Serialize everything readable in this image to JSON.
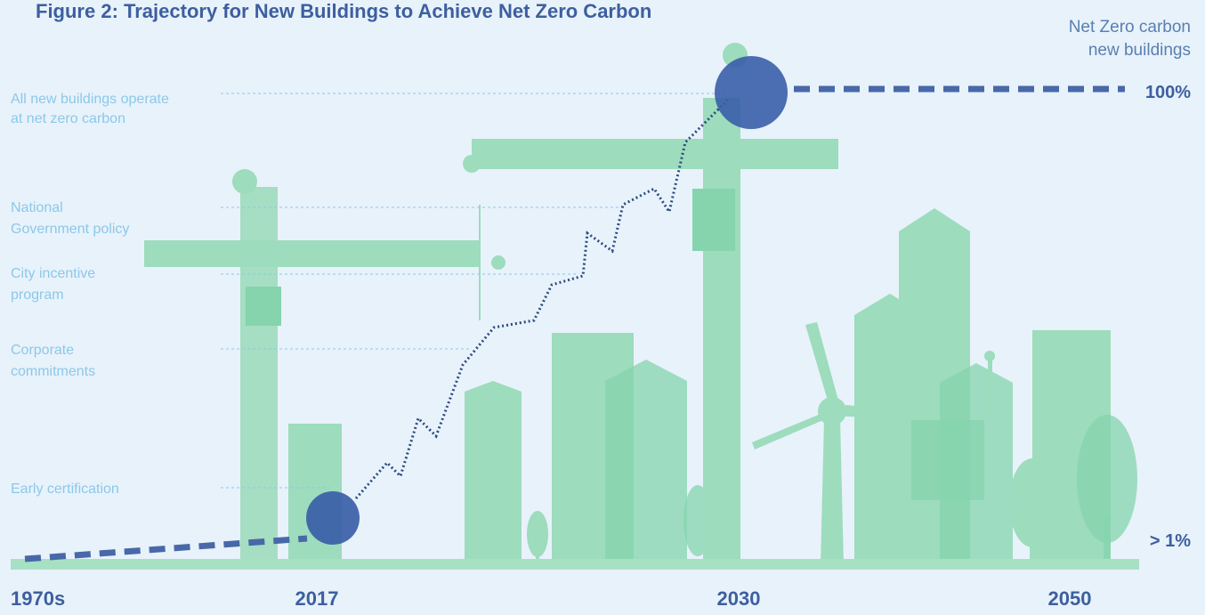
{
  "title": "Figure 2: Trajectory for New Buildings to Achieve Net Zero Carbon",
  "goal_label": [
    "Net Zero carbon",
    "new buildings"
  ],
  "milestones": [
    {
      "lines": [
        "All new buildings operate",
        "at net zero carbon"
      ]
    },
    {
      "lines": [
        "National",
        "Government policy"
      ]
    },
    {
      "lines": [
        "City incentive",
        "program"
      ]
    },
    {
      "lines": [
        "Corporate",
        "commitments"
      ]
    },
    {
      "lines": [
        "Early certification"
      ]
    }
  ],
  "end_labels": {
    "top": "100%",
    "bottom": "> 1%"
  },
  "timeline": [
    "1970s",
    "2017",
    "2030",
    "2050"
  ]
}
